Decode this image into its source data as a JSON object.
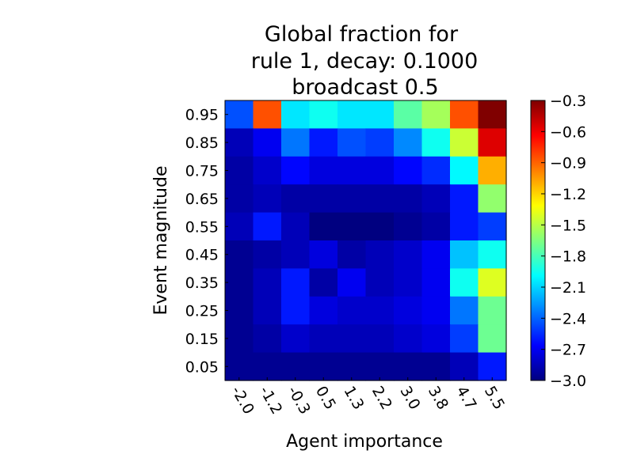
{
  "chart_data": {
    "type": "heatmap",
    "title": [
      "Global fraction for",
      "rule 1, decay: 0.1000",
      "broadcast 0.5"
    ],
    "xlabel": "Agent importance",
    "ylabel": "Event magnitude",
    "x_ticks": [
      "-2.0",
      "-1.2",
      "-0.3",
      "0.5",
      "1.3",
      "2.2",
      "3.0",
      "3.8",
      "4.7",
      "5.5"
    ],
    "y_ticks": [
      "0.95",
      "0.85",
      "0.75",
      "0.65",
      "0.55",
      "0.45",
      "0.35",
      "0.25",
      "0.15",
      "0.05"
    ],
    "colorbar": {
      "min": -3.0,
      "max": -0.3,
      "ticks": [
        "−0.3",
        "−0.6",
        "−0.9",
        "−1.2",
        "−1.5",
        "−1.8",
        "−2.1",
        "−2.4",
        "−2.7",
        "−3.0"
      ],
      "colormap": "jet"
    },
    "values": [
      [
        -2.45,
        -0.85,
        -2.05,
        -1.95,
        -2.05,
        -2.05,
        -1.75,
        -1.55,
        -0.85,
        -0.3
      ],
      [
        -2.85,
        -2.7,
        -2.35,
        -2.6,
        -2.45,
        -2.5,
        -2.3,
        -1.95,
        -1.45,
        -0.55
      ],
      [
        -2.9,
        -2.8,
        -2.65,
        -2.75,
        -2.75,
        -2.75,
        -2.65,
        -2.55,
        -2.0,
        -1.1
      ],
      [
        -2.9,
        -2.85,
        -2.9,
        -2.9,
        -2.9,
        -2.9,
        -2.9,
        -2.85,
        -2.6,
        -1.6
      ],
      [
        -2.85,
        -2.6,
        -2.85,
        -3.0,
        -3.0,
        -3.0,
        -2.95,
        -2.9,
        -2.6,
        -2.5
      ],
      [
        -2.95,
        -2.9,
        -2.85,
        -2.75,
        -2.9,
        -2.85,
        -2.8,
        -2.7,
        -2.15,
        -1.95
      ],
      [
        -2.95,
        -2.85,
        -2.6,
        -2.9,
        -2.7,
        -2.85,
        -2.8,
        -2.7,
        -1.95,
        -1.4
      ],
      [
        -2.95,
        -2.85,
        -2.6,
        -2.75,
        -2.8,
        -2.8,
        -2.75,
        -2.7,
        -2.35,
        -1.7
      ],
      [
        -2.95,
        -2.9,
        -2.8,
        -2.85,
        -2.85,
        -2.85,
        -2.8,
        -2.75,
        -2.5,
        -1.7
      ],
      [
        -2.95,
        -2.95,
        -2.95,
        -2.95,
        -2.95,
        -2.95,
        -2.95,
        -2.95,
        -2.85,
        -2.6
      ]
    ]
  }
}
